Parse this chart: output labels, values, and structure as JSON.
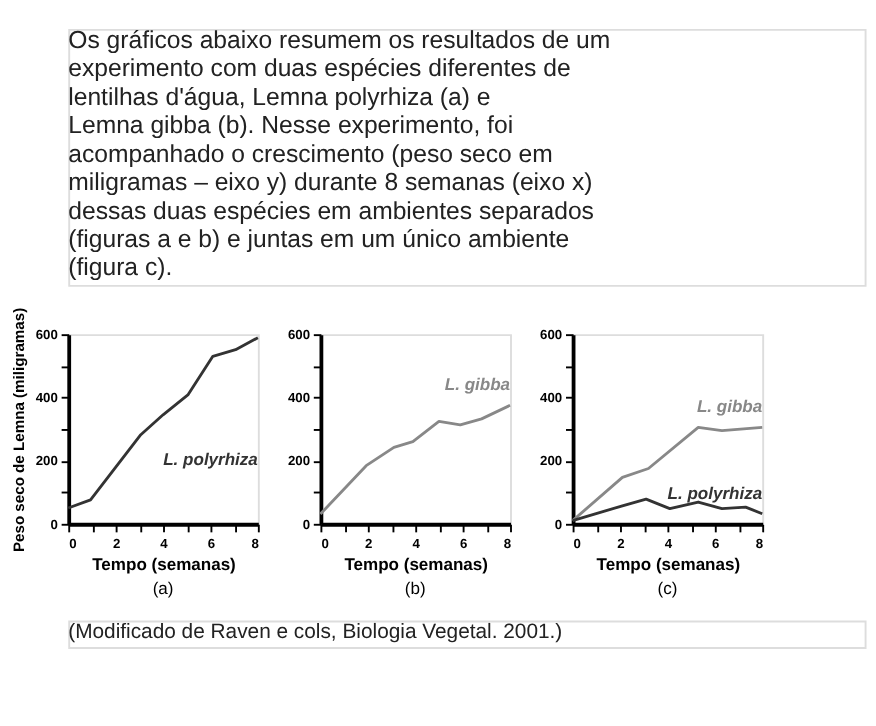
{
  "chart_data": [
    {
      "type": "other",
      "annotations": [
        "Os gráficos abaixo resumem os resultados de um",
        "experimento com duas espécies diferentes de",
        "lentilhas d'água, Lemna polyrhiza (a) e",
        "Lemna gibba (b). Nesse experimento, foi",
        "acompanhado o crescimento (peso seco em",
        "miligramas – eixo y) durante 8 semanas (eixo x)",
        "dessas duas espécies em ambientes separados",
        "(figuras a e b) e juntas em um único ambiente",
        "(figura c)."
      ]
    },
    {
      "type": "line",
      "title": "(a)",
      "xlabel": "Tempo (semanas)",
      "ylabel": "Peso seco de Lemna (miligramas)",
      "xlim": [
        0,
        8
      ],
      "ylim": [
        0,
        600
      ],
      "xticks": [
        0,
        {
          "value": 1,
          "label": null
        },
        2,
        {
          "value": 3,
          "label": null
        },
        4,
        {
          "value": 5,
          "label": null
        },
        6,
        {
          "value": 7,
          "label": null
        },
        8
      ],
      "yticks": [
        0,
        {
          "value": 100,
          "label": null
        },
        200,
        {
          "value": 300,
          "label": null
        },
        400,
        {
          "value": 500,
          "label": null
        },
        600
      ],
      "series": [
        {
          "name": "L. polyrhiza",
          "color": "#333333",
          "x": [
            0,
            0.94,
            3.06,
            4,
            5.06,
            6.1,
            7.06,
            8
          ],
          "values": [
            50,
            76,
            282,
            345,
            409,
            530,
            551,
            589
          ]
        }
      ]
    },
    {
      "type": "line",
      "title": "(b)",
      "xlabel": "Tempo (semanas)",
      "xlim": [
        0,
        8
      ],
      "ylim": [
        0,
        600
      ],
      "xticks": [
        0,
        {
          "value": 1,
          "label": null
        },
        2,
        {
          "value": 3,
          "label": null
        },
        4,
        {
          "value": 5,
          "label": null
        },
        6,
        {
          "value": 7,
          "label": null
        },
        8
      ],
      "yticks": [
        0,
        {
          "value": 100,
          "label": null
        },
        200,
        {
          "value": 300,
          "label": null
        },
        400,
        {
          "value": 500,
          "label": null
        },
        600
      ],
      "series": [
        {
          "name": "L. gibba",
          "color": "#888888",
          "x": [
            0,
            1.93,
            3.1,
            3.9,
            5,
            5.9,
            6.8,
            8
          ],
          "values": [
            31,
            184,
            242,
            260,
            324,
            313,
            332,
            375
          ]
        }
      ]
    },
    {
      "type": "line",
      "title": "(c)",
      "xlabel": "Tempo (semanas)",
      "xlim": [
        0,
        8
      ],
      "ylim": [
        0,
        600
      ],
      "xticks": [
        0,
        {
          "value": 1,
          "label": null
        },
        2,
        {
          "value": 3,
          "label": null
        },
        4,
        {
          "value": 5,
          "label": null
        },
        6,
        {
          "value": 7,
          "label": null
        },
        8
      ],
      "yticks": [
        0,
        {
          "value": 100,
          "label": null
        },
        200,
        {
          "value": 300,
          "label": null
        },
        400,
        {
          "value": 500,
          "label": null
        },
        600
      ],
      "series": [
        {
          "name": "L. gibba",
          "color": "#888888",
          "x": [
            0,
            2.1,
            3.2,
            5.3,
            6.3,
            8
          ],
          "values": [
            10,
            147,
            175,
            305,
            295,
            305
          ]
        },
        {
          "name": "L. polyrhiza",
          "color": "#333333",
          "x": [
            0,
            2.1,
            3.1,
            4.1,
            5.3,
            6.3,
            7.3,
            8
          ],
          "values": [
            10,
            57,
            78,
            48,
            69,
            48,
            53,
            32
          ]
        }
      ]
    },
    {
      "type": "other",
      "annotations": [
        "(Modificado de Raven e cols, Biologia Vegetal. 2001.)"
      ]
    }
  ]
}
